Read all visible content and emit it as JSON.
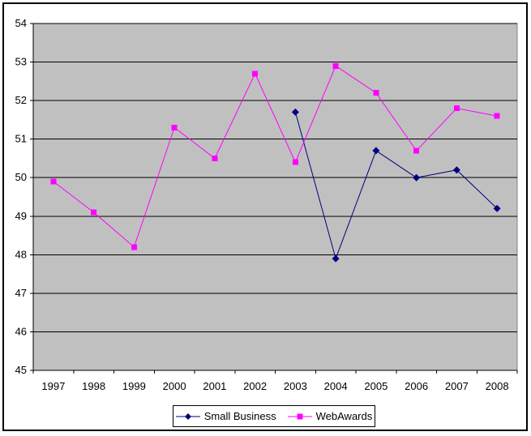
{
  "window": {
    "background_color": "#FFFFFF",
    "border_color": "#000000"
  },
  "chart_data": {
    "type": "line",
    "title": "",
    "xlabel": "",
    "ylabel": "",
    "categories": [
      "1997",
      "1998",
      "1999",
      "2000",
      "2001",
      "2002",
      "2003",
      "2004",
      "2005",
      "2006",
      "2007",
      "2008"
    ],
    "series": [
      {
        "name": "Small Business",
        "color": "#000080",
        "marker": "diamond",
        "values": [
          null,
          null,
          null,
          null,
          null,
          null,
          51.7,
          47.9,
          50.7,
          50.0,
          50.2,
          49.2
        ]
      },
      {
        "name": "WebAwards",
        "color": "#FF00FF",
        "marker": "square",
        "values": [
          49.9,
          49.1,
          48.2,
          51.3,
          50.5,
          52.7,
          50.4,
          52.9,
          52.2,
          50.7,
          51.8,
          51.6
        ]
      }
    ],
    "ylim": [
      45,
      54
    ],
    "ytick_step": 1,
    "yticks": [
      "45",
      "46",
      "47",
      "48",
      "49",
      "50",
      "51",
      "52",
      "53",
      "54"
    ],
    "grid": "horizontal",
    "gridline_color": "#000000",
    "plot_bg": "#C0C0C0",
    "plot_border_color": "#848284",
    "axis_text_color": "#000000",
    "legend_position": "bottom-center"
  }
}
